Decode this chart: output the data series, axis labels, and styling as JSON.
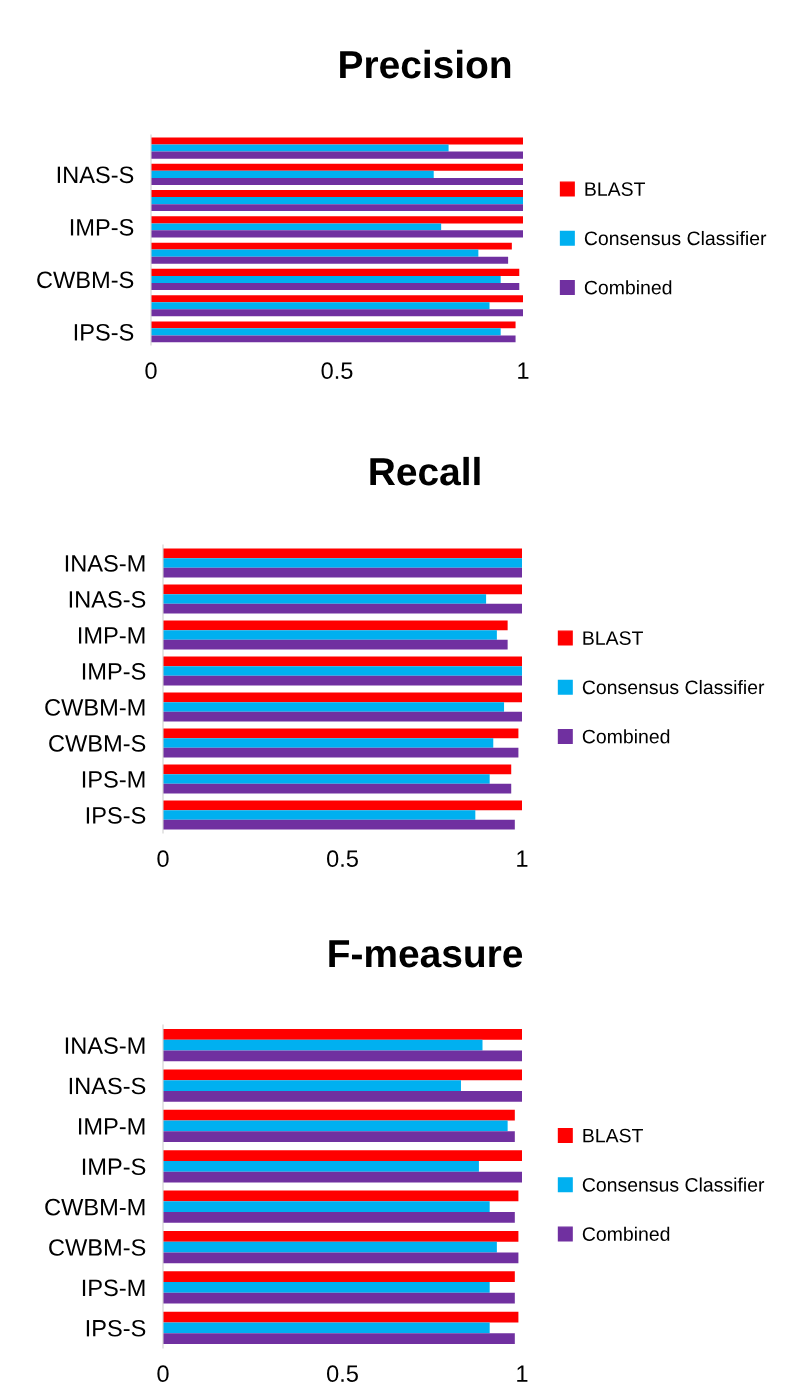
{
  "chart_data": [
    {
      "type": "bar",
      "orientation": "horizontal",
      "title": "Precision",
      "categories": [
        null,
        "INAS-S",
        null,
        "IMP-S",
        null,
        "CWBM-S",
        null,
        "IPS-S"
      ],
      "xlim": [
        0,
        1
      ],
      "xticks": [
        0,
        0.5,
        1
      ],
      "grid": false,
      "legend": "right",
      "series": [
        {
          "name": "BLAST",
          "color": "#ff0000",
          "values": [
            1,
            1,
            1,
            1,
            0.97,
            0.99,
            1,
            0.98
          ]
        },
        {
          "name": "Consensus Classifier",
          "color": "#00b0f0",
          "values": [
            0.8,
            0.76,
            1,
            0.78,
            0.88,
            0.94,
            0.91,
            0.94
          ]
        },
        {
          "name": "Combined",
          "color": "#7030a0",
          "values": [
            1,
            1,
            1,
            1,
            0.96,
            0.99,
            1,
            0.98
          ]
        }
      ]
    },
    {
      "type": "bar",
      "orientation": "horizontal",
      "title": "Recall",
      "categories": [
        "INAS-M",
        "INAS-S",
        "IMP-M",
        "IMP-S",
        "CWBM-M",
        "CWBM-S",
        "IPS-M",
        "IPS-S"
      ],
      "xlim": [
        0,
        1
      ],
      "xticks": [
        0,
        0.5,
        1
      ],
      "grid": false,
      "legend": "right",
      "series": [
        {
          "name": "BLAST",
          "color": "#ff0000",
          "values": [
            1,
            1,
            0.96,
            1,
            1,
            0.99,
            0.97,
            1
          ]
        },
        {
          "name": "Consensus Classifier",
          "color": "#00b0f0",
          "values": [
            1,
            0.9,
            0.93,
            1,
            0.95,
            0.92,
            0.91,
            0.87
          ]
        },
        {
          "name": "Combined",
          "color": "#7030a0",
          "values": [
            1,
            1,
            0.96,
            1,
            1,
            0.99,
            0.97,
            0.98
          ]
        }
      ]
    },
    {
      "type": "bar",
      "orientation": "horizontal",
      "title": "F-measure",
      "categories": [
        "INAS-M",
        "INAS-S",
        "IMP-M",
        "IMP-S",
        "CWBM-M",
        "CWBM-S",
        "IPS-M",
        "IPS-S"
      ],
      "xlim": [
        0,
        1
      ],
      "xticks": [
        0,
        0.5,
        1
      ],
      "grid": false,
      "legend": "right",
      "series": [
        {
          "name": "BLAST",
          "color": "#ff0000",
          "values": [
            1,
            1,
            0.98,
            1,
            0.99,
            0.99,
            0.98,
            0.99
          ]
        },
        {
          "name": "Consensus Classifier",
          "color": "#00b0f0",
          "values": [
            0.89,
            0.83,
            0.96,
            0.88,
            0.91,
            0.93,
            0.91,
            0.91
          ]
        },
        {
          "name": "Combined",
          "color": "#7030a0",
          "values": [
            1,
            1,
            0.98,
            1,
            0.98,
            0.99,
            0.98,
            0.98
          ]
        }
      ]
    }
  ]
}
